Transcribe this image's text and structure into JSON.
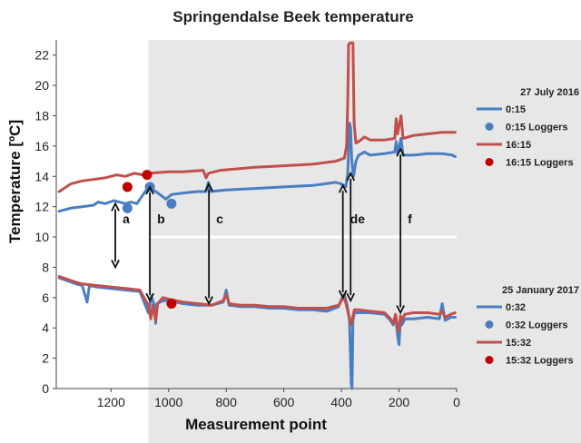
{
  "chart_data": {
    "type": "line",
    "title": "Springendalse Beek temperature",
    "xlabel": "Measurement point",
    "ylabel": "Temperature [ºC]",
    "xlim": [
      1390,
      0
    ],
    "ylim": [
      0,
      23
    ],
    "x_ticks": [
      1200,
      1000,
      800,
      600,
      400,
      200,
      0
    ],
    "y_ticks": [
      0,
      2,
      4,
      6,
      8,
      10,
      12,
      14,
      16,
      18,
      20,
      22
    ],
    "grid": false,
    "shaded_region": [
      1070,
      0
    ],
    "legends": [
      {
        "heading": "27 July 2016",
        "entries": [
          {
            "label": "0:15",
            "kind": "line",
            "color": "#4a7ec2"
          },
          {
            "label": "0:15 Loggers",
            "kind": "marker",
            "color": "#4a7ec2"
          },
          {
            "label": "16:15",
            "kind": "line",
            "color": "#c0504d"
          },
          {
            "label": "16:15 Loggers",
            "kind": "marker",
            "color": "#c00000"
          }
        ]
      },
      {
        "heading": "25 January 2017",
        "entries": [
          {
            "label": "0:32",
            "kind": "line",
            "color": "#4a7ec2"
          },
          {
            "label": "0:32 Loggers",
            "kind": "marker",
            "color": "#4a7ec2"
          },
          {
            "label": "15:32",
            "kind": "line",
            "color": "#c0504d"
          },
          {
            "label": "15:32 Loggers",
            "kind": "marker",
            "color": "#c00000"
          }
        ]
      }
    ],
    "series": [
      {
        "name": "0:15",
        "color": "#4a7ec2",
        "points": [
          [
            1380,
            11.7
          ],
          [
            1340,
            11.9
          ],
          [
            1300,
            12.0
          ],
          [
            1260,
            12.1
          ],
          [
            1245,
            12.3
          ],
          [
            1220,
            12.2
          ],
          [
            1190,
            12.4
          ],
          [
            1150,
            12.2
          ],
          [
            1130,
            12.3
          ],
          [
            1110,
            12.2
          ],
          [
            1070,
            13.3
          ],
          [
            1045,
            13.0
          ],
          [
            1030,
            12.8
          ],
          [
            1010,
            12.5
          ],
          [
            990,
            12.8
          ],
          [
            950,
            12.9
          ],
          [
            900,
            13.0
          ],
          [
            870,
            13.0
          ],
          [
            862,
            13.6
          ],
          [
            855,
            13.0
          ],
          [
            800,
            13.1
          ],
          [
            700,
            13.2
          ],
          [
            600,
            13.3
          ],
          [
            500,
            13.4
          ],
          [
            420,
            13.6
          ],
          [
            400,
            13.5
          ],
          [
            385,
            13.3
          ],
          [
            378,
            14.2
          ],
          [
            372,
            17.5
          ],
          [
            368,
            17.2
          ],
          [
            364,
            15.0
          ],
          [
            358,
            14.0
          ],
          [
            350,
            15.0
          ],
          [
            340,
            15.4
          ],
          [
            320,
            15.6
          ],
          [
            300,
            15.4
          ],
          [
            250,
            15.5
          ],
          [
            215,
            15.6
          ],
          [
            210,
            16.3
          ],
          [
            205,
            15.5
          ],
          [
            200,
            15.9
          ],
          [
            193,
            16.5
          ],
          [
            186,
            15.4
          ],
          [
            150,
            15.4
          ],
          [
            100,
            15.5
          ],
          [
            50,
            15.5
          ],
          [
            15,
            15.4
          ],
          [
            5,
            15.3
          ]
        ]
      },
      {
        "name": "16:15",
        "color": "#c0504d",
        "points": [
          [
            1380,
            13.0
          ],
          [
            1340,
            13.5
          ],
          [
            1300,
            13.7
          ],
          [
            1260,
            13.8
          ],
          [
            1220,
            13.9
          ],
          [
            1180,
            14.1
          ],
          [
            1150,
            14.0
          ],
          [
            1120,
            14.2
          ],
          [
            1090,
            14.1
          ],
          [
            1070,
            14.2
          ],
          [
            1000,
            14.3
          ],
          [
            950,
            14.3
          ],
          [
            880,
            14.4
          ],
          [
            870,
            13.9
          ],
          [
            862,
            14.2
          ],
          [
            820,
            14.4
          ],
          [
            700,
            14.6
          ],
          [
            600,
            14.7
          ],
          [
            500,
            14.8
          ],
          [
            420,
            15.0
          ],
          [
            390,
            15.2
          ],
          [
            382,
            16.0
          ],
          [
            378,
            19.0
          ],
          [
            375,
            22.7
          ],
          [
            370,
            22.8
          ],
          [
            360,
            22.8
          ],
          [
            356,
            17.5
          ],
          [
            350,
            16.2
          ],
          [
            340,
            16.3
          ],
          [
            320,
            16.6
          ],
          [
            300,
            16.4
          ],
          [
            250,
            16.4
          ],
          [
            215,
            16.5
          ],
          [
            210,
            17.8
          ],
          [
            205,
            16.8
          ],
          [
            200,
            17.3
          ],
          [
            193,
            18.0
          ],
          [
            186,
            16.5
          ],
          [
            150,
            16.7
          ],
          [
            100,
            16.8
          ],
          [
            50,
            16.9
          ],
          [
            5,
            16.9
          ]
        ]
      },
      {
        "name": "0:32",
        "color": "#4a7ec2",
        "points": [
          [
            1380,
            7.3
          ],
          [
            1350,
            7.1
          ],
          [
            1320,
            6.9
          ],
          [
            1300,
            6.8
          ],
          [
            1283,
            5.7
          ],
          [
            1275,
            6.8
          ],
          [
            1250,
            6.7
          ],
          [
            1200,
            6.6
          ],
          [
            1150,
            6.5
          ],
          [
            1100,
            6.4
          ],
          [
            1070,
            5.0
          ],
          [
            1060,
            6.1
          ],
          [
            1050,
            5.5
          ],
          [
            1045,
            4.3
          ],
          [
            1040,
            5.6
          ],
          [
            1020,
            5.8
          ],
          [
            1000,
            5.8
          ],
          [
            950,
            5.6
          ],
          [
            900,
            5.5
          ],
          [
            850,
            5.5
          ],
          [
            810,
            5.7
          ],
          [
            800,
            6.5
          ],
          [
            790,
            5.5
          ],
          [
            750,
            5.4
          ],
          [
            700,
            5.4
          ],
          [
            650,
            5.3
          ],
          [
            600,
            5.3
          ],
          [
            550,
            5.2
          ],
          [
            500,
            5.2
          ],
          [
            450,
            5.1
          ],
          [
            410,
            5.4
          ],
          [
            400,
            5.9
          ],
          [
            390,
            6.2
          ],
          [
            380,
            5.5
          ],
          [
            372,
            4.5
          ],
          [
            366,
            0.3
          ],
          [
            363,
            0.0
          ],
          [
            360,
            4.5
          ],
          [
            355,
            5.0
          ],
          [
            340,
            5.0
          ],
          [
            300,
            5.0
          ],
          [
            250,
            4.9
          ],
          [
            230,
            4.5
          ],
          [
            220,
            4.2
          ],
          [
            212,
            4.8
          ],
          [
            205,
            3.5
          ],
          [
            200,
            2.9
          ],
          [
            195,
            4.5
          ],
          [
            190,
            4.2
          ],
          [
            180,
            4.6
          ],
          [
            150,
            4.6
          ],
          [
            100,
            4.7
          ],
          [
            60,
            4.6
          ],
          [
            50,
            5.6
          ],
          [
            40,
            4.5
          ],
          [
            20,
            4.7
          ],
          [
            5,
            4.7
          ]
        ]
      },
      {
        "name": "15:32",
        "color": "#c0504d",
        "points": [
          [
            1380,
            7.4
          ],
          [
            1350,
            7.2
          ],
          [
            1320,
            7.0
          ],
          [
            1300,
            6.9
          ],
          [
            1250,
            6.8
          ],
          [
            1200,
            6.7
          ],
          [
            1150,
            6.6
          ],
          [
            1100,
            6.5
          ],
          [
            1070,
            5.5
          ],
          [
            1062,
            4.6
          ],
          [
            1055,
            5.5
          ],
          [
            1045,
            4.5
          ],
          [
            1038,
            5.6
          ],
          [
            1020,
            6.0
          ],
          [
            1000,
            5.9
          ],
          [
            950,
            5.7
          ],
          [
            900,
            5.6
          ],
          [
            850,
            5.5
          ],
          [
            810,
            5.8
          ],
          [
            800,
            6.2
          ],
          [
            790,
            5.6
          ],
          [
            750,
            5.5
          ],
          [
            700,
            5.5
          ],
          [
            650,
            5.4
          ],
          [
            600,
            5.4
          ],
          [
            550,
            5.3
          ],
          [
            500,
            5.3
          ],
          [
            450,
            5.3
          ],
          [
            410,
            5.5
          ],
          [
            400,
            5.8
          ],
          [
            390,
            6.0
          ],
          [
            380,
            5.3
          ],
          [
            372,
            4.6
          ],
          [
            366,
            4.2
          ],
          [
            360,
            4.8
          ],
          [
            355,
            5.2
          ],
          [
            340,
            5.2
          ],
          [
            300,
            5.1
          ],
          [
            250,
            5.0
          ],
          [
            230,
            4.6
          ],
          [
            220,
            4.3
          ],
          [
            212,
            4.9
          ],
          [
            205,
            4.0
          ],
          [
            200,
            3.8
          ],
          [
            195,
            4.8
          ],
          [
            190,
            4.5
          ],
          [
            180,
            4.9
          ],
          [
            150,
            5.0
          ],
          [
            100,
            5.0
          ],
          [
            60,
            4.9
          ],
          [
            50,
            5.1
          ],
          [
            40,
            4.7
          ],
          [
            20,
            4.9
          ],
          [
            5,
            5.0
          ]
        ]
      }
    ],
    "logger_points": [
      {
        "series": "0:15 Loggers",
        "color": "#4a7ec2",
        "points": [
          [
            1143,
            11.9
          ],
          [
            1065,
            13.3
          ],
          [
            990,
            12.2
          ]
        ]
      },
      {
        "series": "16:15 Loggers",
        "color": "#c00000",
        "points": [
          [
            1143,
            13.3
          ],
          [
            1075,
            14.1
          ],
          [
            990,
            5.6
          ]
        ]
      }
    ],
    "annotations": [
      {
        "label": "a",
        "x": 1185,
        "y_top": 12.2,
        "y_bottom": 8.0
      },
      {
        "label": "b",
        "x": 1065,
        "y_top": 13.3,
        "y_bottom": 5.8
      },
      {
        "label": "c",
        "x": 860,
        "y_top": 13.5,
        "y_bottom": 5.6
      },
      {
        "label": "d",
        "x": 395,
        "y_top": 13.4,
        "y_bottom": 6.0
      },
      {
        "label": "e",
        "x": 368,
        "y_top": 14.2,
        "y_bottom": 5.8
      },
      {
        "label": "f",
        "x": 195,
        "y_top": 15.8,
        "y_bottom": 5.0
      }
    ]
  }
}
